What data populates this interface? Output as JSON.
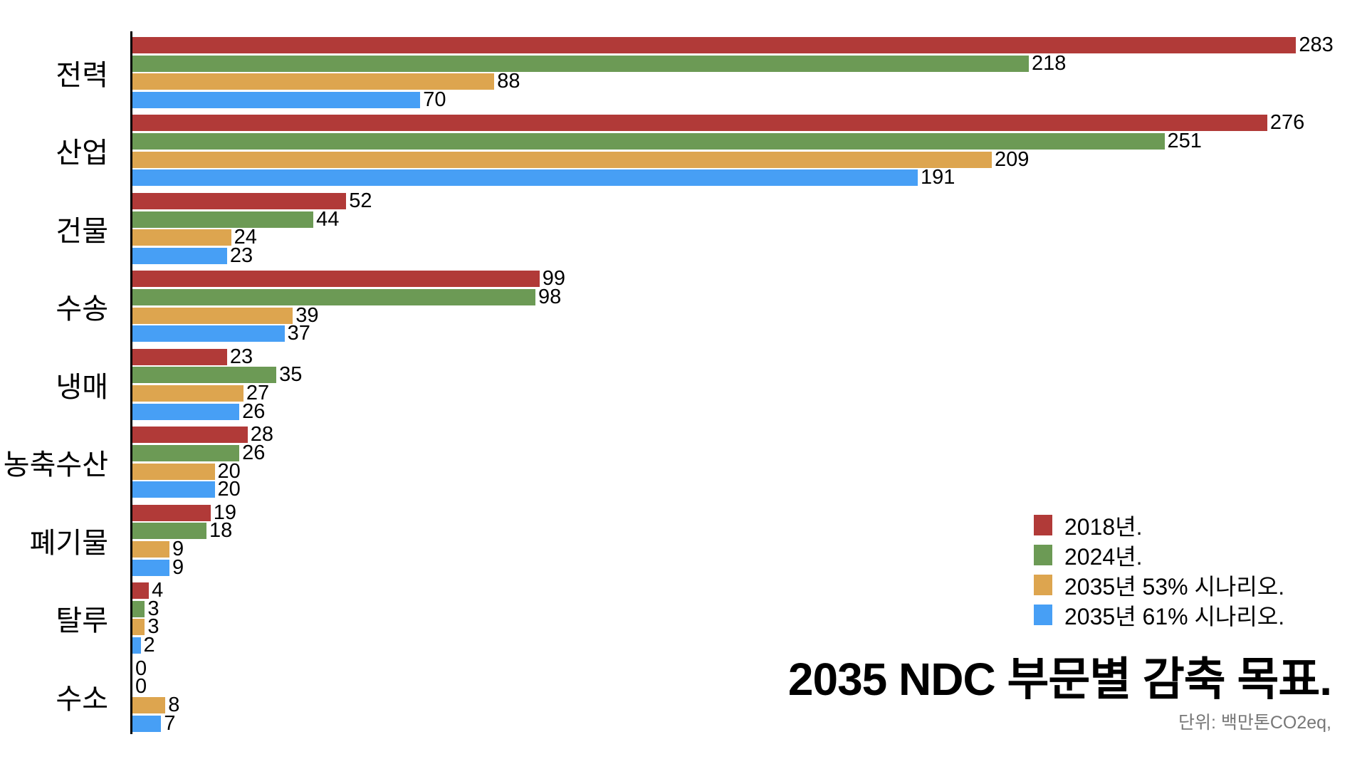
{
  "title": "2035 NDC 부문별 감축 목표.",
  "unit_note": "단위: 백만톤CO2eq,",
  "chart_data": {
    "type": "bar",
    "orientation": "horizontal",
    "title": "2035 NDC 부문별 감축 목표.",
    "unit": "백만톤CO2eq",
    "categories": [
      "전력",
      "산업",
      "건물",
      "수송",
      "냉매",
      "농축수산",
      "폐기물",
      "탈루",
      "수소"
    ],
    "series": [
      {
        "name": "2018년.",
        "color": "#b13a38",
        "values": [
          283,
          276,
          52,
          99,
          23,
          28,
          19,
          4,
          0
        ]
      },
      {
        "name": "2024년.",
        "color": "#6c9a55",
        "values": [
          218,
          251,
          44,
          98,
          35,
          26,
          18,
          3,
          0
        ]
      },
      {
        "name": "2035년 53% 시나리오.",
        "color": "#dda54f",
        "values": [
          88,
          209,
          24,
          39,
          27,
          20,
          9,
          3,
          8
        ]
      },
      {
        "name": "2035년 61% 시나리오.",
        "color": "#479ff5",
        "values": [
          70,
          191,
          23,
          37,
          26,
          20,
          9,
          2,
          7
        ]
      }
    ],
    "value_labels": true,
    "xlim": [
      0,
      290
    ],
    "grid": false,
    "legend_position": "right-bottom",
    "axis_color": "#000000",
    "background_color": "#ffffff"
  }
}
